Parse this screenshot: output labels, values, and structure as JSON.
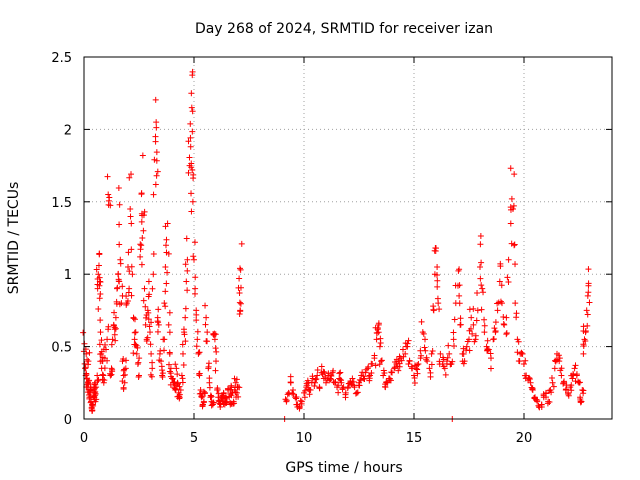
{
  "chart_data": {
    "type": "scatter",
    "title": "Day 268 of 2024, SRMTID for receiver izan",
    "xlabel": "GPS time / hours",
    "ylabel": "SRMTID / TECUs",
    "xlim": [
      0,
      24
    ],
    "ylim": [
      0,
      2.5
    ],
    "xticks": [
      0,
      5,
      10,
      15,
      20
    ],
    "xtick_labels": [
      "0",
      "5",
      "10",
      "15",
      "20"
    ],
    "yticks": [
      0,
      0.5,
      1,
      1.5,
      2,
      2.5
    ],
    "ytick_labels": [
      "0",
      "0.5",
      "1",
      "1.5",
      "2",
      "2.5"
    ],
    "grid": true,
    "marker": "+",
    "color": "#ff0000",
    "series": [
      {
        "name": "SRMTID",
        "points": [
          [
            0.02,
            0.52
          ],
          [
            0.05,
            0.35
          ],
          [
            0.08,
            0.3
          ],
          [
            0.1,
            0.45
          ],
          [
            0.12,
            0.28
          ],
          [
            0.15,
            0.22
          ],
          [
            0.18,
            0.25
          ],
          [
            0.2,
            0.4
          ],
          [
            0.22,
            0.2
          ],
          [
            0.25,
            0.15
          ],
          [
            0.28,
            0.18
          ],
          [
            0.3,
            0.22
          ],
          [
            0.32,
            0.12
          ],
          [
            0.35,
            0.08
          ],
          [
            0.38,
            0.06
          ],
          [
            0.4,
            0.1
          ],
          [
            0.42,
            0.15
          ],
          [
            0.45,
            0.2
          ],
          [
            0.48,
            0.18
          ],
          [
            0.5,
            0.25
          ],
          [
            0.52,
            0.12
          ],
          [
            0.55,
            0.22
          ],
          [
            0.6,
            0.3
          ],
          [
            0.62,
            0.9
          ],
          [
            0.65,
            1.0
          ],
          [
            0.68,
            1.06
          ],
          [
            0.7,
            0.92
          ],
          [
            0.72,
            0.95
          ],
          [
            0.75,
            0.6
          ],
          [
            0.78,
            0.45
          ],
          [
            0.8,
            0.35
          ],
          [
            0.85,
            0.4
          ],
          [
            0.88,
            0.3
          ],
          [
            0.9,
            0.25
          ],
          [
            0.95,
            0.42
          ],
          [
            1.0,
            0.48
          ],
          [
            1.05,
            0.55
          ],
          [
            1.1,
            1.55
          ],
          [
            1.15,
            1.53
          ],
          [
            1.2,
            0.3
          ],
          [
            1.25,
            0.35
          ],
          [
            1.3,
            0.55
          ],
          [
            1.35,
            0.65
          ],
          [
            1.4,
            0.62
          ],
          [
            1.45,
            0.7
          ],
          [
            1.5,
            0.9
          ],
          [
            1.55,
            1.0
          ],
          [
            1.6,
            0.95
          ],
          [
            1.62,
            1.48
          ],
          [
            1.65,
            1.1
          ],
          [
            1.7,
            0.8
          ],
          [
            1.75,
            0.4
          ],
          [
            1.8,
            0.3
          ],
          [
            1.85,
            0.25
          ],
          [
            1.9,
            0.35
          ],
          [
            1.95,
            0.8
          ],
          [
            2.0,
            1.05
          ],
          [
            2.05,
            0.9
          ],
          [
            2.1,
            1.45
          ],
          [
            2.15,
            1.35
          ],
          [
            2.2,
            1.0
          ],
          [
            2.25,
            0.7
          ],
          [
            2.3,
            0.55
          ],
          [
            2.35,
            0.6
          ],
          [
            2.4,
            0.45
          ],
          [
            2.45,
            0.38
          ],
          [
            2.5,
            0.3
          ],
          [
            2.55,
            1.12
          ],
          [
            2.6,
            1.2
          ],
          [
            2.62,
            1.56
          ],
          [
            2.65,
            1.25
          ],
          [
            2.7,
            1.3
          ],
          [
            2.75,
            0.9
          ],
          [
            2.8,
            0.65
          ],
          [
            2.85,
            0.55
          ],
          [
            2.9,
            0.75
          ],
          [
            2.95,
            0.95
          ],
          [
            3.0,
            0.6
          ],
          [
            3.05,
            0.45
          ],
          [
            3.1,
            0.35
          ],
          [
            3.15,
            1.0
          ],
          [
            3.2,
            1.79
          ],
          [
            3.25,
            1.95
          ],
          [
            3.28,
            2.05
          ],
          [
            3.3,
            1.68
          ],
          [
            3.35,
            0.7
          ],
          [
            3.4,
            0.65
          ],
          [
            3.45,
            0.45
          ],
          [
            3.5,
            0.4
          ],
          [
            3.55,
            0.3
          ],
          [
            3.6,
            0.55
          ],
          [
            3.65,
            0.8
          ],
          [
            3.7,
            1.05
          ],
          [
            3.75,
            1.15
          ],
          [
            3.8,
            1.35
          ],
          [
            3.85,
            0.65
          ],
          [
            3.9,
            0.45
          ],
          [
            3.95,
            0.35
          ],
          [
            4.0,
            0.28
          ],
          [
            4.05,
            0.25
          ],
          [
            4.1,
            0.22
          ],
          [
            4.15,
            0.2
          ],
          [
            4.2,
            0.35
          ],
          [
            4.25,
            0.25
          ],
          [
            4.3,
            0.18
          ],
          [
            4.35,
            0.15
          ],
          [
            4.4,
            0.2
          ],
          [
            4.45,
            0.3
          ],
          [
            4.5,
            0.45
          ],
          [
            4.55,
            0.6
          ],
          [
            4.6,
            0.7
          ],
          [
            4.65,
            0.95
          ],
          [
            4.7,
            1.1
          ],
          [
            4.75,
            1.7
          ],
          [
            4.8,
            1.75
          ],
          [
            4.85,
            1.88
          ],
          [
            4.88,
            2.25
          ],
          [
            4.9,
            2.15
          ],
          [
            4.92,
            1.72
          ],
          [
            4.95,
            1.5
          ],
          [
            5.0,
            1.1
          ],
          [
            5.05,
            0.9
          ],
          [
            5.1,
            0.75
          ],
          [
            5.15,
            0.55
          ],
          [
            5.2,
            0.45
          ],
          [
            5.25,
            0.3
          ],
          [
            5.3,
            0.2
          ],
          [
            5.35,
            0.15
          ],
          [
            5.4,
            0.1
          ],
          [
            5.45,
            0.12
          ],
          [
            5.5,
            0.18
          ],
          [
            5.55,
            0.7
          ],
          [
            5.6,
            0.6
          ],
          [
            5.65,
            0.35
          ],
          [
            5.7,
            0.25
          ],
          [
            5.75,
            0.15
          ],
          [
            5.8,
            0.12
          ],
          [
            5.85,
            0.1
          ],
          [
            5.9,
            0.58
          ],
          [
            5.95,
            0.55
          ],
          [
            6.0,
            0.4
          ],
          [
            6.05,
            0.2
          ],
          [
            6.1,
            0.15
          ],
          [
            6.15,
            0.12
          ],
          [
            6.2,
            0.1
          ],
          [
            6.25,
            0.15
          ],
          [
            6.3,
            0.12
          ],
          [
            6.35,
            0.18
          ],
          [
            6.4,
            0.1
          ],
          [
            6.45,
            0.15
          ],
          [
            6.5,
            0.12
          ],
          [
            6.55,
            0.2
          ],
          [
            6.6,
            0.15
          ],
          [
            6.65,
            0.1
          ],
          [
            6.7,
            0.22
          ],
          [
            6.75,
            0.18
          ],
          [
            6.8,
            0.12
          ],
          [
            6.85,
            0.2
          ],
          [
            6.9,
            0.25
          ],
          [
            6.95,
            0.18
          ],
          [
            7.0,
            0.22
          ],
          [
            7.05,
            0.97
          ],
          [
            7.07,
            0.87
          ],
          [
            7.1,
            0.75
          ],
          [
            7.12,
            1.03
          ],
          [
            9.12,
            0.0
          ],
          [
            9.2,
            0.12
          ],
          [
            9.3,
            0.18
          ],
          [
            9.4,
            0.25
          ],
          [
            9.5,
            0.2
          ],
          [
            9.6,
            0.15
          ],
          [
            9.7,
            0.1
          ],
          [
            9.8,
            0.08
          ],
          [
            9.9,
            0.12
          ],
          [
            10.0,
            0.18
          ],
          [
            10.1,
            0.22
          ],
          [
            10.2,
            0.25
          ],
          [
            10.3,
            0.2
          ],
          [
            10.4,
            0.28
          ],
          [
            10.5,
            0.25
          ],
          [
            10.6,
            0.3
          ],
          [
            10.7,
            0.22
          ],
          [
            10.8,
            0.32
          ],
          [
            10.9,
            0.28
          ],
          [
            11.0,
            0.25
          ],
          [
            11.1,
            0.3
          ],
          [
            11.2,
            0.28
          ],
          [
            11.3,
            0.32
          ],
          [
            11.4,
            0.25
          ],
          [
            11.5,
            0.22
          ],
          [
            11.6,
            0.28
          ],
          [
            11.7,
            0.25
          ],
          [
            11.8,
            0.22
          ],
          [
            11.9,
            0.18
          ],
          [
            12.0,
            0.22
          ],
          [
            12.1,
            0.25
          ],
          [
            12.2,
            0.28
          ],
          [
            12.3,
            0.22
          ],
          [
            12.4,
            0.18
          ],
          [
            12.5,
            0.25
          ],
          [
            12.6,
            0.3
          ],
          [
            12.7,
            0.28
          ],
          [
            12.8,
            0.32
          ],
          [
            12.9,
            0.35
          ],
          [
            13.0,
            0.3
          ],
          [
            13.1,
            0.38
          ],
          [
            13.2,
            0.42
          ],
          [
            13.3,
            0.55
          ],
          [
            13.35,
            0.62
          ],
          [
            13.4,
            0.65
          ],
          [
            13.45,
            0.5
          ],
          [
            13.5,
            0.4
          ],
          [
            13.6,
            0.3
          ],
          [
            13.7,
            0.22
          ],
          [
            13.8,
            0.25
          ],
          [
            13.9,
            0.28
          ],
          [
            14.0,
            0.32
          ],
          [
            14.1,
            0.35
          ],
          [
            14.2,
            0.38
          ],
          [
            14.3,
            0.4
          ],
          [
            14.4,
            0.42
          ],
          [
            14.5,
            0.48
          ],
          [
            14.6,
            0.45
          ],
          [
            14.7,
            0.5
          ],
          [
            14.8,
            0.4
          ],
          [
            14.9,
            0.35
          ],
          [
            15.0,
            0.3
          ],
          [
            15.1,
            0.35
          ],
          [
            15.2,
            0.38
          ],
          [
            15.3,
            0.42
          ],
          [
            15.4,
            0.6
          ],
          [
            15.5,
            0.55
          ],
          [
            15.6,
            0.4
          ],
          [
            15.7,
            0.35
          ],
          [
            15.8,
            0.45
          ],
          [
            15.9,
            0.75
          ],
          [
            15.95,
            1.0
          ],
          [
            16.0,
            1.18
          ],
          [
            16.05,
            1.05
          ],
          [
            16.1,
            0.8
          ],
          [
            16.2,
            0.45
          ],
          [
            16.3,
            0.38
          ],
          [
            16.4,
            0.35
          ],
          [
            16.5,
            0.4
          ],
          [
            16.6,
            0.45
          ],
          [
            16.7,
            0.38
          ],
          [
            16.74,
            0.0
          ],
          [
            16.8,
            0.55
          ],
          [
            16.9,
            0.8
          ],
          [
            17.0,
            0.92
          ],
          [
            17.05,
            0.85
          ],
          [
            17.1,
            0.65
          ],
          [
            17.2,
            0.45
          ],
          [
            17.3,
            0.4
          ],
          [
            17.4,
            0.5
          ],
          [
            17.5,
            0.55
          ],
          [
            17.6,
            0.7
          ],
          [
            17.7,
            0.65
          ],
          [
            17.8,
            0.55
          ],
          [
            17.9,
            0.75
          ],
          [
            18.0,
            1.05
          ],
          [
            18.05,
            1.08
          ],
          [
            18.1,
            0.9
          ],
          [
            18.2,
            0.6
          ],
          [
            18.3,
            0.5
          ],
          [
            18.4,
            0.48
          ],
          [
            18.5,
            0.42
          ],
          [
            18.6,
            0.55
          ],
          [
            18.7,
            0.6
          ],
          [
            18.8,
            0.75
          ],
          [
            18.9,
            0.95
          ],
          [
            19.0,
            0.8
          ],
          [
            19.1,
            0.65
          ],
          [
            19.2,
            0.7
          ],
          [
            19.3,
            1.1
          ],
          [
            19.4,
            1.35
          ],
          [
            19.45,
            1.52
          ],
          [
            19.5,
            1.45
          ],
          [
            19.55,
            1.2
          ],
          [
            19.6,
            0.8
          ],
          [
            19.7,
            0.55
          ],
          [
            19.8,
            0.4
          ],
          [
            19.9,
            0.45
          ],
          [
            20.0,
            0.38
          ],
          [
            20.1,
            0.3
          ],
          [
            20.2,
            0.28
          ],
          [
            20.3,
            0.25
          ],
          [
            20.4,
            0.2
          ],
          [
            20.5,
            0.15
          ],
          [
            20.6,
            0.12
          ],
          [
            20.7,
            0.08
          ],
          [
            20.8,
            0.1
          ],
          [
            20.9,
            0.15
          ],
          [
            21.0,
            0.18
          ],
          [
            21.1,
            0.12
          ],
          [
            21.2,
            0.2
          ],
          [
            21.3,
            0.25
          ],
          [
            21.4,
            0.35
          ],
          [
            21.5,
            0.45
          ],
          [
            21.6,
            0.4
          ],
          [
            21.7,
            0.3
          ],
          [
            21.8,
            0.25
          ],
          [
            21.9,
            0.2
          ],
          [
            22.0,
            0.18
          ],
          [
            22.1,
            0.22
          ],
          [
            22.2,
            0.28
          ],
          [
            22.3,
            0.35
          ],
          [
            22.4,
            0.3
          ],
          [
            22.5,
            0.25
          ],
          [
            22.55,
            0.15
          ],
          [
            22.6,
            0.12
          ],
          [
            22.65,
            0.2
          ],
          [
            22.7,
            0.45
          ],
          [
            22.75,
            0.55
          ],
          [
            22.8,
            0.6
          ],
          [
            22.85,
            0.75
          ],
          [
            22.9,
            0.85
          ],
          [
            22.93,
            0.92
          ]
        ]
      }
    ]
  }
}
